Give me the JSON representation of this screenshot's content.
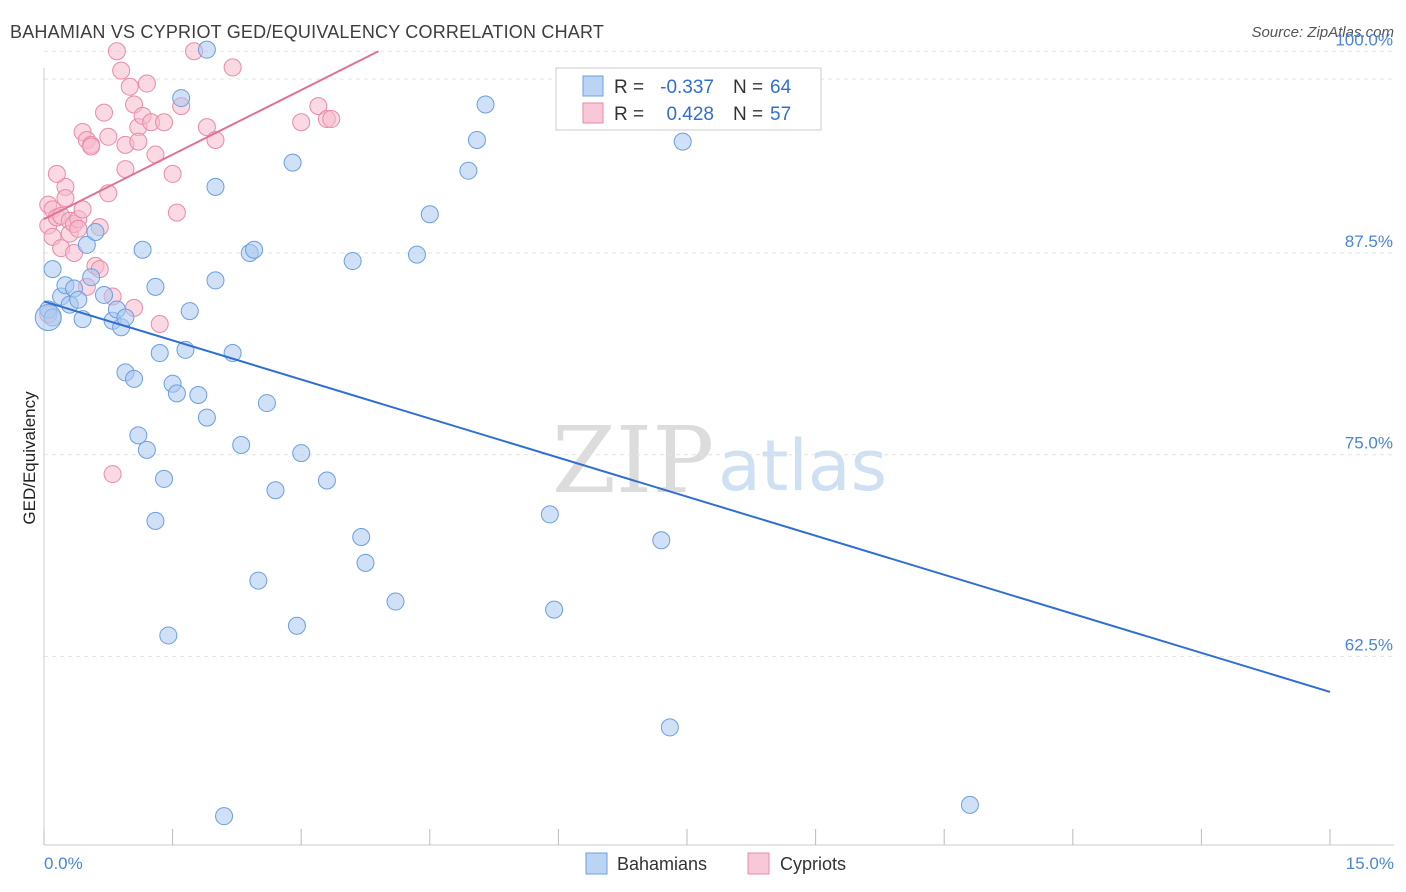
{
  "title": "BAHAMIAN VS CYPRIOT GED/EQUIVALENCY CORRELATION CHART",
  "source": "Source: ZipAtlas.com",
  "watermark": {
    "zip": "ZIP",
    "atlas": "atlas"
  },
  "legend": {
    "rows": [
      {
        "r_label": "R =",
        "r_value": "-0.337",
        "n_label": "N =",
        "n_value": "64"
      },
      {
        "r_label": "R =",
        "r_value": "0.428",
        "n_label": "N =",
        "n_value": "57"
      }
    ]
  },
  "bottom_legend": [
    "Bahamians",
    "Cypriots"
  ],
  "colors": {
    "bahamians_fill": "#a9c8f0",
    "bahamians_stroke": "#6b9fe0",
    "bahamians_line": "#2f6fd1",
    "cypriots_fill": "#f6b9cc",
    "cypriots_stroke": "#ea8aa9",
    "cypriots_line": "#e26f97",
    "grid": "#e3e3e3",
    "tick_text": "#4a86d4"
  },
  "chart_data": {
    "type": "scatter",
    "title": "BAHAMIAN VS CYPRIOT GED/EQUIVALENCY CORRELATION CHART",
    "xlabel": "",
    "ylabel": "GED/Equivalency",
    "xlim": [
      0,
      15
    ],
    "ylim": [
      51,
      102
    ],
    "x_tick_labels": [
      "0.0%",
      "15.0%"
    ],
    "y_ticks": [
      62.5,
      75.0,
      87.5,
      100.0
    ],
    "y_tick_labels": [
      "62.5%",
      "75.0%",
      "87.5%",
      "100.0%"
    ],
    "grid": true,
    "series": [
      {
        "name": "Bahamians",
        "R": -0.337,
        "N": 64,
        "trend": {
          "x": [
            0,
            15
          ],
          "y": [
            84.5,
            60.3
          ]
        },
        "points": [
          [
            0.05,
            84.0
          ],
          [
            0.1,
            83.5
          ],
          [
            0.1,
            86.5
          ],
          [
            0.2,
            84.8
          ],
          [
            0.25,
            85.5
          ],
          [
            0.3,
            84.3
          ],
          [
            0.35,
            85.3
          ],
          [
            0.4,
            84.6
          ],
          [
            0.45,
            83.4
          ],
          [
            0.5,
            88.0
          ],
          [
            0.55,
            86.0
          ],
          [
            0.6,
            88.8
          ],
          [
            0.7,
            84.9
          ],
          [
            0.8,
            83.3
          ],
          [
            0.85,
            84.0
          ],
          [
            0.9,
            82.9
          ],
          [
            0.95,
            83.5
          ],
          [
            0.95,
            80.1
          ],
          [
            1.05,
            79.7
          ],
          [
            1.1,
            76.2
          ],
          [
            1.15,
            87.7
          ],
          [
            1.2,
            75.3
          ],
          [
            1.3,
            70.9
          ],
          [
            1.3,
            85.4
          ],
          [
            1.35,
            81.3
          ],
          [
            1.4,
            73.5
          ],
          [
            1.45,
            63.8
          ],
          [
            1.5,
            79.4
          ],
          [
            1.55,
            78.8
          ],
          [
            1.6,
            97.1
          ],
          [
            1.65,
            81.5
          ],
          [
            1.7,
            83.9
          ],
          [
            1.8,
            78.7
          ],
          [
            1.9,
            100.1
          ],
          [
            1.9,
            77.3
          ],
          [
            2.0,
            91.6
          ],
          [
            2.0,
            85.8
          ],
          [
            2.1,
            52.6
          ],
          [
            2.2,
            81.3
          ],
          [
            2.3,
            75.6
          ],
          [
            2.4,
            87.5
          ],
          [
            2.45,
            87.7
          ],
          [
            2.5,
            67.2
          ],
          [
            2.6,
            78.2
          ],
          [
            2.7,
            72.8
          ],
          [
            2.9,
            93.1
          ],
          [
            2.95,
            64.4
          ],
          [
            3.0,
            75.1
          ],
          [
            3.3,
            73.4
          ],
          [
            3.6,
            87.0
          ],
          [
            3.7,
            69.9
          ],
          [
            3.75,
            68.3
          ],
          [
            4.1,
            65.9
          ],
          [
            4.35,
            87.4
          ],
          [
            4.5,
            89.9
          ],
          [
            4.95,
            92.6
          ],
          [
            5.05,
            94.5
          ],
          [
            5.15,
            96.7
          ],
          [
            5.9,
            71.3
          ],
          [
            5.95,
            65.4
          ],
          [
            7.2,
            69.7
          ],
          [
            7.3,
            58.1
          ],
          [
            7.45,
            94.4
          ],
          [
            10.8,
            53.3
          ]
        ]
      },
      {
        "name": "Cypriots",
        "R": 0.428,
        "N": 57,
        "trend": {
          "x": [
            0,
            3.9
          ],
          "y": [
            89.6,
            100.0
          ]
        },
        "points": [
          [
            0.05,
            90.5
          ],
          [
            0.05,
            89.2
          ],
          [
            0.05,
            83.7
          ],
          [
            0.1,
            90.2
          ],
          [
            0.1,
            88.5
          ],
          [
            0.15,
            89.7
          ],
          [
            0.2,
            87.8
          ],
          [
            0.2,
            89.8
          ],
          [
            0.25,
            91.6
          ],
          [
            0.25,
            90.9
          ],
          [
            0.3,
            89.5
          ],
          [
            0.3,
            88.7
          ],
          [
            0.35,
            87.5
          ],
          [
            0.35,
            89.3
          ],
          [
            0.4,
            89.6
          ],
          [
            0.4,
            89.0
          ],
          [
            0.45,
            90.2
          ],
          [
            0.45,
            95.0
          ],
          [
            0.5,
            94.5
          ],
          [
            0.5,
            85.4
          ],
          [
            0.55,
            94.2
          ],
          [
            0.55,
            94.1
          ],
          [
            0.6,
            86.7
          ],
          [
            0.65,
            86.5
          ],
          [
            0.65,
            89.1
          ],
          [
            0.7,
            96.2
          ],
          [
            0.75,
            94.7
          ],
          [
            0.75,
            91.2
          ],
          [
            0.8,
            73.8
          ],
          [
            0.8,
            84.8
          ],
          [
            0.85,
            100.0
          ],
          [
            0.9,
            98.8
          ],
          [
            0.95,
            94.2
          ],
          [
            0.95,
            92.7
          ],
          [
            1.0,
            97.8
          ],
          [
            1.05,
            96.7
          ],
          [
            1.1,
            95.3
          ],
          [
            1.1,
            94.4
          ],
          [
            1.15,
            96.0
          ],
          [
            1.2,
            98.0
          ],
          [
            1.25,
            95.6
          ],
          [
            1.3,
            93.6
          ],
          [
            1.35,
            83.1
          ],
          [
            1.4,
            95.6
          ],
          [
            1.5,
            92.4
          ],
          [
            1.55,
            90.0
          ],
          [
            1.6,
            96.6
          ],
          [
            1.75,
            100.0
          ],
          [
            1.9,
            95.3
          ],
          [
            2.0,
            94.5
          ],
          [
            3.0,
            95.6
          ],
          [
            3.2,
            96.6
          ],
          [
            3.3,
            95.8
          ],
          [
            3.35,
            95.8
          ],
          [
            2.2,
            99.0
          ],
          [
            1.05,
            84.1
          ],
          [
            0.15,
            92.4
          ]
        ]
      }
    ]
  }
}
